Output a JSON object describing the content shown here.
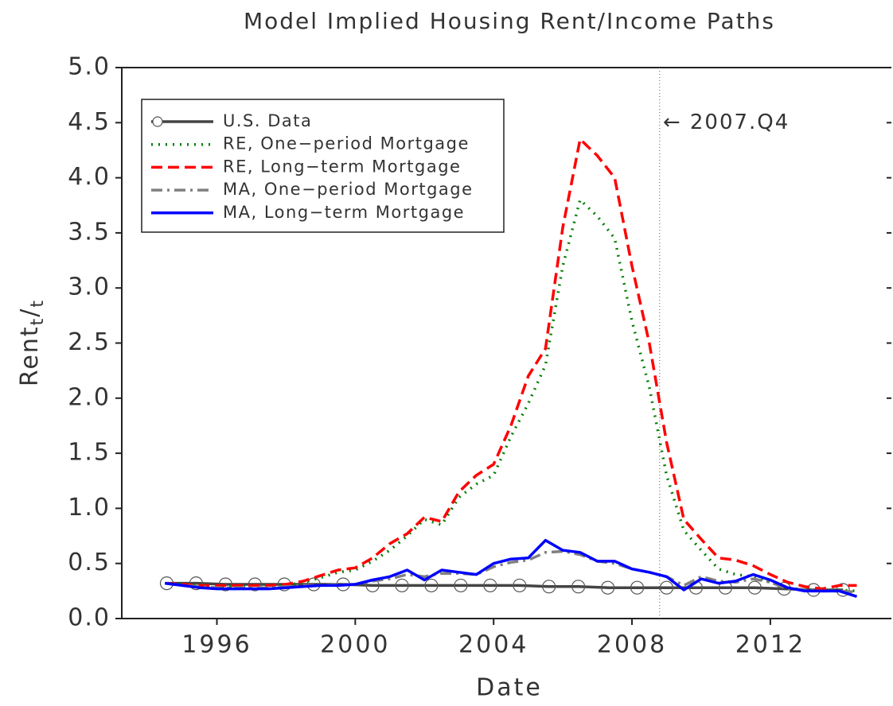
{
  "chart_data": {
    "type": "line",
    "title": "Model Implied Housing Rent/Income Paths",
    "xlabel": "Date",
    "ylabel": [
      "Rent",
      "t",
      "/",
      "t"
    ],
    "xlim": [
      1993.25,
      2015.5
    ],
    "xticks": [
      1996,
      2000,
      2004,
      2008,
      2012
    ],
    "ylim": [
      0,
      5
    ],
    "yticks": [
      {
        "value": 0,
        "label": "0.0"
      },
      {
        "value": 0.5,
        "label": "0.5"
      },
      {
        "value": 1,
        "label": "1.0"
      },
      {
        "value": 1.5,
        "label": "1.5"
      },
      {
        "value": 2,
        "label": "2.0"
      },
      {
        "value": 2.5,
        "label": "2.5"
      },
      {
        "value": 3,
        "label": "3.0"
      },
      {
        "value": 3.5,
        "label": "3.5"
      },
      {
        "value": 4,
        "label": "4.0"
      },
      {
        "value": 4.5,
        "label": "4.5"
      },
      {
        "value": 5,
        "label": "5.0"
      }
    ],
    "legend": "top-left",
    "annotation": {
      "text": "← 2007.Q4",
      "x": 2008.8,
      "y": 4.5
    },
    "x": [
      1994.5,
      1995,
      1995.5,
      1996,
      1996.5,
      1997,
      1997.5,
      1998,
      1998.5,
      1999,
      1999.5,
      2000,
      2000.5,
      2001,
      2001.5,
      2002,
      2002.5,
      2003,
      2003.5,
      2004,
      2004.5,
      2005,
      2005.5,
      2006,
      2006.5,
      2007,
      2007.5,
      2008,
      2008.5,
      2009,
      2009.5,
      2010,
      2010.5,
      2011,
      2011.5,
      2012,
      2012.5,
      2013,
      2013.5,
      2014,
      2014.5
    ],
    "series": [
      {
        "name": "U.S. Data",
        "color": "#444444",
        "style": "solid",
        "marker": "circle",
        "x": [
          1994.55,
          1995.4,
          1996.25,
          1997.1,
          1997.95,
          1998.8,
          1999.65,
          2000.5,
          2001.35,
          2002.2,
          2003.05,
          2003.9,
          2004.75,
          2005.6,
          2006.45,
          2007.3,
          2008.15,
          2009,
          2009.85,
          2010.7,
          2011.55,
          2012.4,
          2013.25,
          2014.1
        ],
        "values": [
          0.32,
          0.32,
          0.31,
          0.31,
          0.31,
          0.31,
          0.31,
          0.3,
          0.3,
          0.3,
          0.3,
          0.3,
          0.3,
          0.29,
          0.29,
          0.28,
          0.28,
          0.28,
          0.28,
          0.28,
          0.28,
          0.27,
          0.26,
          0.26
        ]
      },
      {
        "name": "RE, One−period Mortgage",
        "color": "#008000",
        "style": "dotted",
        "values": [
          0.32,
          0.31,
          0.3,
          0.29,
          0.29,
          0.29,
          0.29,
          0.3,
          0.33,
          0.37,
          0.42,
          0.44,
          0.52,
          0.62,
          0.75,
          0.9,
          0.85,
          1.1,
          1.22,
          1.3,
          1.65,
          1.95,
          2.3,
          3.2,
          3.8,
          3.65,
          3.45,
          2.7,
          2.1,
          1.3,
          0.8,
          0.62,
          0.45,
          0.4,
          0.38,
          0.33,
          0.28,
          0.26,
          0.25,
          0.26,
          0.25
        ]
      },
      {
        "name": "RE, Long−term Mortgage",
        "color": "#ff0000",
        "style": "dashed",
        "values": [
          0.32,
          0.31,
          0.3,
          0.3,
          0.3,
          0.3,
          0.3,
          0.31,
          0.34,
          0.39,
          0.44,
          0.46,
          0.55,
          0.68,
          0.77,
          0.92,
          0.88,
          1.15,
          1.3,
          1.4,
          1.75,
          2.2,
          2.45,
          3.55,
          4.35,
          4.2,
          4.0,
          3.2,
          2.5,
          1.6,
          0.9,
          0.72,
          0.55,
          0.53,
          0.48,
          0.4,
          0.33,
          0.29,
          0.27,
          0.3,
          0.3
        ]
      },
      {
        "name": "MA, One−period Mortgage",
        "color": "#808080",
        "style": "dashdot",
        "values": [
          0.32,
          0.3,
          0.29,
          0.28,
          0.28,
          0.28,
          0.28,
          0.29,
          0.3,
          0.3,
          0.31,
          0.31,
          0.34,
          0.36,
          0.4,
          0.38,
          0.41,
          0.41,
          0.4,
          0.47,
          0.51,
          0.53,
          0.6,
          0.61,
          0.58,
          0.52,
          0.5,
          0.45,
          0.42,
          0.38,
          0.3,
          0.38,
          0.34,
          0.33,
          0.36,
          0.33,
          0.27,
          0.26,
          0.25,
          0.25,
          0.24
        ]
      },
      {
        "name": "MA, Long−term Mortgage",
        "color": "#0000ff",
        "style": "solid",
        "values": [
          0.32,
          0.3,
          0.28,
          0.27,
          0.27,
          0.27,
          0.27,
          0.28,
          0.29,
          0.3,
          0.3,
          0.31,
          0.35,
          0.38,
          0.44,
          0.35,
          0.44,
          0.42,
          0.4,
          0.5,
          0.54,
          0.55,
          0.71,
          0.62,
          0.6,
          0.52,
          0.52,
          0.45,
          0.42,
          0.38,
          0.26,
          0.36,
          0.32,
          0.34,
          0.4,
          0.35,
          0.28,
          0.25,
          0.25,
          0.25,
          0.2
        ]
      }
    ]
  }
}
